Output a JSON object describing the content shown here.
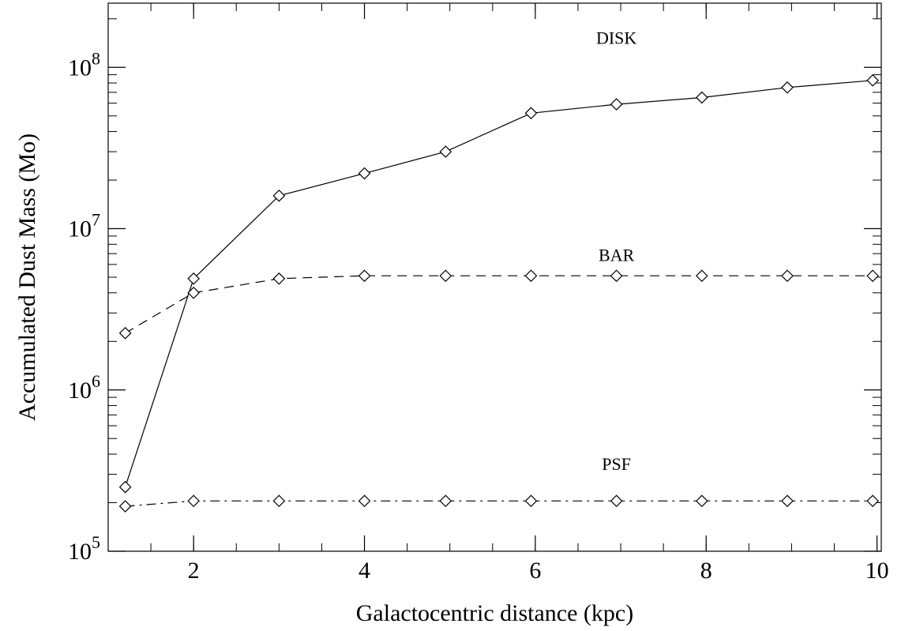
{
  "chart_data": {
    "type": "line",
    "title": "",
    "xlabel": "Galactocentric distance (kpc)",
    "ylabel": "Accumulated Dust Mass (Mo)",
    "xlim": [
      1.0,
      10.05
    ],
    "ylim": [
      100000,
      250000000
    ],
    "yscale": "log",
    "grid": false,
    "legend": "none",
    "x_ticks": [
      2,
      4,
      6,
      8,
      10
    ],
    "x_tick_labels": [
      "2",
      "4",
      "6",
      "8",
      "10"
    ],
    "y_ticks": [
      100000,
      1000000,
      10000000,
      100000000
    ],
    "y_tick_labels": [
      {
        "base": "10",
        "exp": "5"
      },
      {
        "base": "10",
        "exp": "6"
      },
      {
        "base": "10",
        "exp": "7"
      },
      {
        "base": "10",
        "exp": "8"
      }
    ],
    "x": [
      1.2,
      2.0,
      3.0,
      4.0,
      4.95,
      5.95,
      6.95,
      7.95,
      8.95,
      9.95
    ],
    "series": [
      {
        "name": "DISK",
        "line_style": "solid",
        "marker": "diamond",
        "label_at": [
          6.95,
          140000000
        ],
        "values": [
          250000,
          4900000,
          16000000,
          22000000,
          30000000,
          52000000,
          59000000,
          65000000,
          75000000,
          83000000
        ]
      },
      {
        "name": "BAR",
        "line_style": "dashed",
        "marker": "diamond",
        "label_at": [
          6.95,
          6300000
        ],
        "values": [
          2250000,
          4000000,
          4900000,
          5100000,
          5100000,
          5100000,
          5100000,
          5100000,
          5100000,
          5100000
        ]
      },
      {
        "name": "PSF",
        "line_style": "dashdot",
        "marker": "diamond",
        "label_at": [
          6.95,
          320000
        ],
        "values": [
          190000,
          205000,
          205000,
          205000,
          205000,
          205000,
          205000,
          205000,
          205000,
          205000
        ]
      }
    ],
    "colors": {
      "line": "#000000",
      "background": "#ffffff"
    }
  }
}
